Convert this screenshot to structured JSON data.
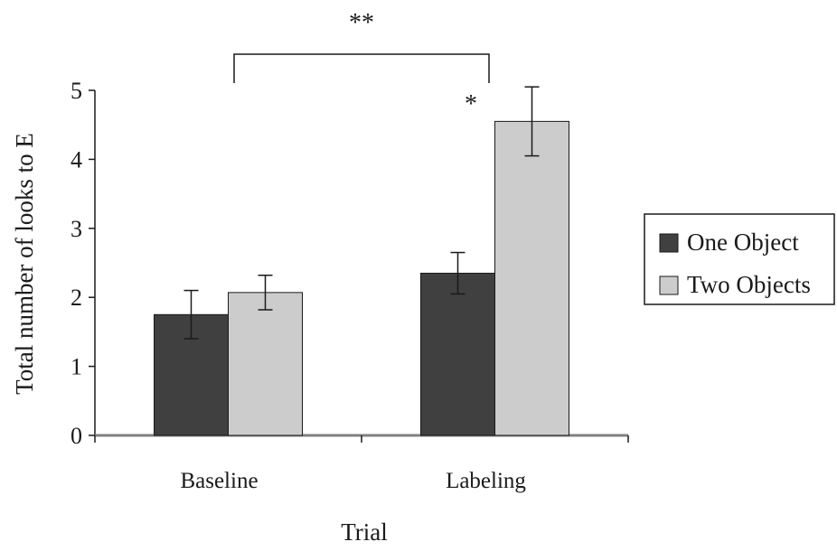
{
  "chart_data": {
    "type": "bar",
    "title": "",
    "xlabel": "Trial",
    "ylabel": "Total number of looks to E",
    "ylim": [
      0,
      5
    ],
    "yticks": [
      0,
      1,
      2,
      3,
      4,
      5
    ],
    "categories": [
      "Baseline",
      "Labeling"
    ],
    "series": [
      {
        "name": "One Object",
        "values": [
          1.75,
          2.35
        ],
        "errors": [
          0.35,
          0.3
        ],
        "color": "#404040"
      },
      {
        "name": "Two Objects",
        "values": [
          2.07,
          4.55
        ],
        "errors": [
          0.25,
          0.5
        ],
        "color": "#cccccc"
      }
    ],
    "legend": {
      "placement": "right"
    },
    "grid": false,
    "annotations": {
      "bracket_label": "**",
      "labeling_star": "*"
    }
  }
}
